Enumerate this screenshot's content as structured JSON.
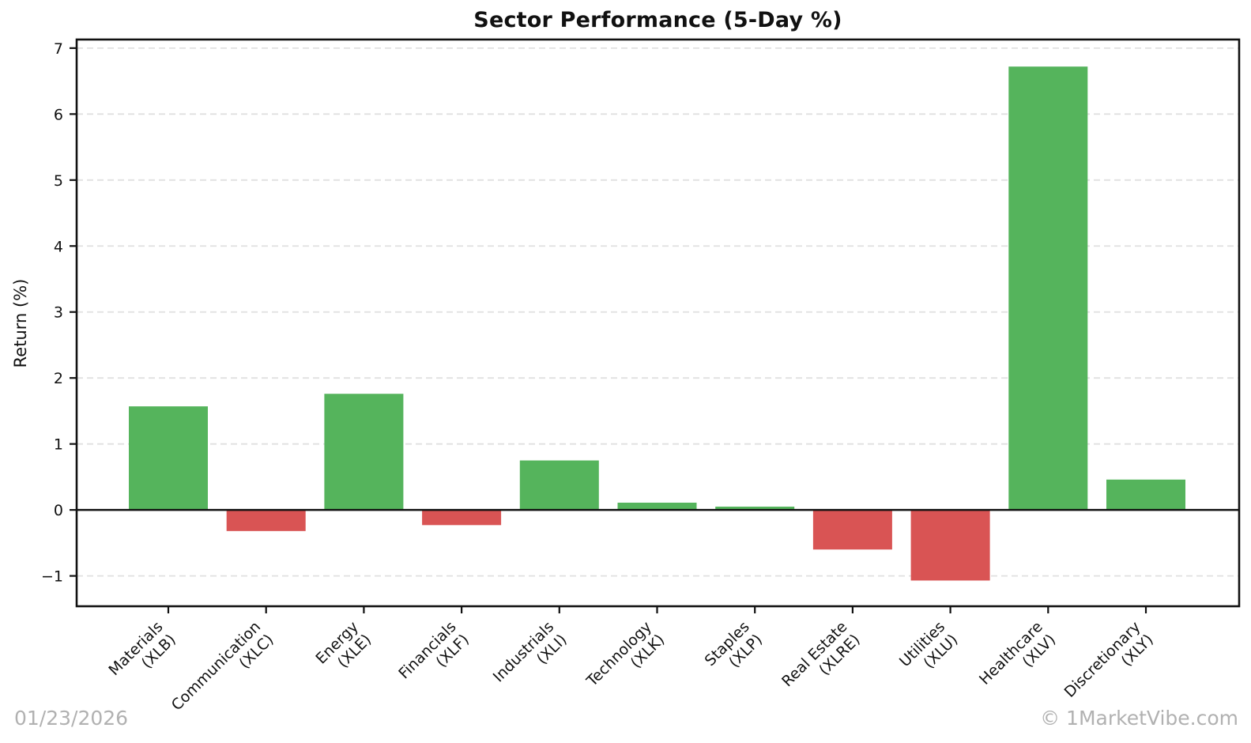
{
  "chart_data": {
    "type": "bar",
    "title": "Sector Performance (5-Day %)",
    "xlabel": "",
    "ylabel": "Return (%)",
    "categories": [
      {
        "name": "Materials",
        "ticker": "(XLB)"
      },
      {
        "name": "Communication",
        "ticker": "(XLC)"
      },
      {
        "name": "Energy",
        "ticker": "(XLE)"
      },
      {
        "name": "Financials",
        "ticker": "(XLF)"
      },
      {
        "name": "Industrials",
        "ticker": "(XLI)"
      },
      {
        "name": "Technology",
        "ticker": "(XLK)"
      },
      {
        "name": "Staples",
        "ticker": "(XLP)"
      },
      {
        "name": "Real Estate",
        "ticker": "(XLRE)"
      },
      {
        "name": "Utilities",
        "ticker": "(XLU)"
      },
      {
        "name": "Healthcare",
        "ticker": "(XLV)"
      },
      {
        "name": "Discretionary",
        "ticker": "(XLY)"
      }
    ],
    "values": [
      1.57,
      -0.32,
      1.76,
      -0.23,
      0.75,
      0.11,
      0.05,
      -0.6,
      -1.07,
      6.72,
      0.46
    ],
    "yticks": [
      7,
      6,
      5,
      4,
      3,
      2,
      1,
      0,
      -1
    ],
    "ylim": [
      -1.46,
      7.13
    ],
    "grid": "horizontal-dashed",
    "legend": null,
    "colors": {
      "positive": "#55b45c",
      "negative": "#d95454",
      "grid": "#e0e0e0",
      "axis": "#111111",
      "tick_text": "#111111"
    }
  },
  "footer": {
    "date": "01/23/2026",
    "brand": "© 1MarketVibe.com"
  }
}
